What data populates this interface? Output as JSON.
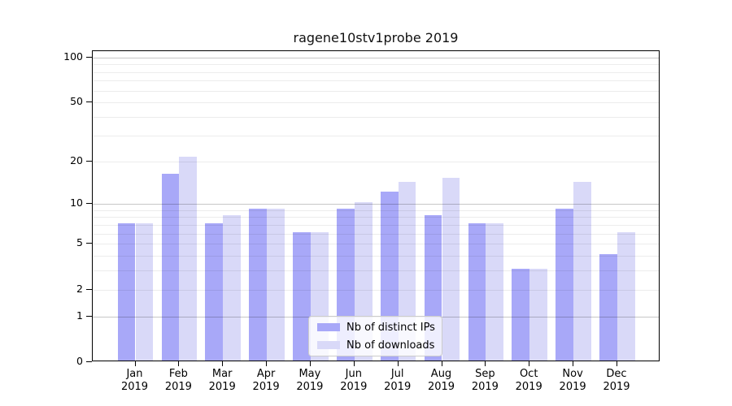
{
  "chart_data": {
    "type": "bar",
    "title": "ragene10stv1probe 2019",
    "categories": [
      "Jan",
      "Feb",
      "Mar",
      "Apr",
      "May",
      "Jun",
      "Jul",
      "Aug",
      "Sep",
      "Oct",
      "Nov",
      "Dec"
    ],
    "year": "2019",
    "series": [
      {
        "name": "Nb of distinct IPs",
        "color": "#a8a8f8",
        "values": [
          7,
          16,
          7,
          9,
          6,
          9,
          12,
          8,
          7,
          3,
          9,
          4
        ]
      },
      {
        "name": "Nb of downloads",
        "color": "#d9d9f8",
        "values": [
          7,
          21,
          8,
          9,
          6,
          10,
          14,
          15,
          7,
          3,
          14,
          6
        ]
      }
    ],
    "xlabel": "",
    "ylabel": "",
    "y_axis": {
      "scale": "log1p",
      "tick_values": [
        0,
        1,
        2,
        5,
        10,
        20,
        50,
        100
      ],
      "tick_labels": [
        "0",
        "1",
        "2",
        "5",
        "10",
        "20",
        "50",
        "100"
      ],
      "range_top_value": 110
    },
    "gridlines": {
      "major": [
        1,
        10,
        100
      ],
      "minor": [
        2,
        3,
        4,
        5,
        6,
        7,
        8,
        9,
        20,
        30,
        40,
        50,
        60,
        70,
        80,
        90
      ]
    },
    "legend_position": "lower center",
    "colors": {
      "background": "#ffffff",
      "axis": "#000000",
      "bar_dark": "#a8a8f8",
      "bar_light": "#d9d9f8"
    }
  }
}
